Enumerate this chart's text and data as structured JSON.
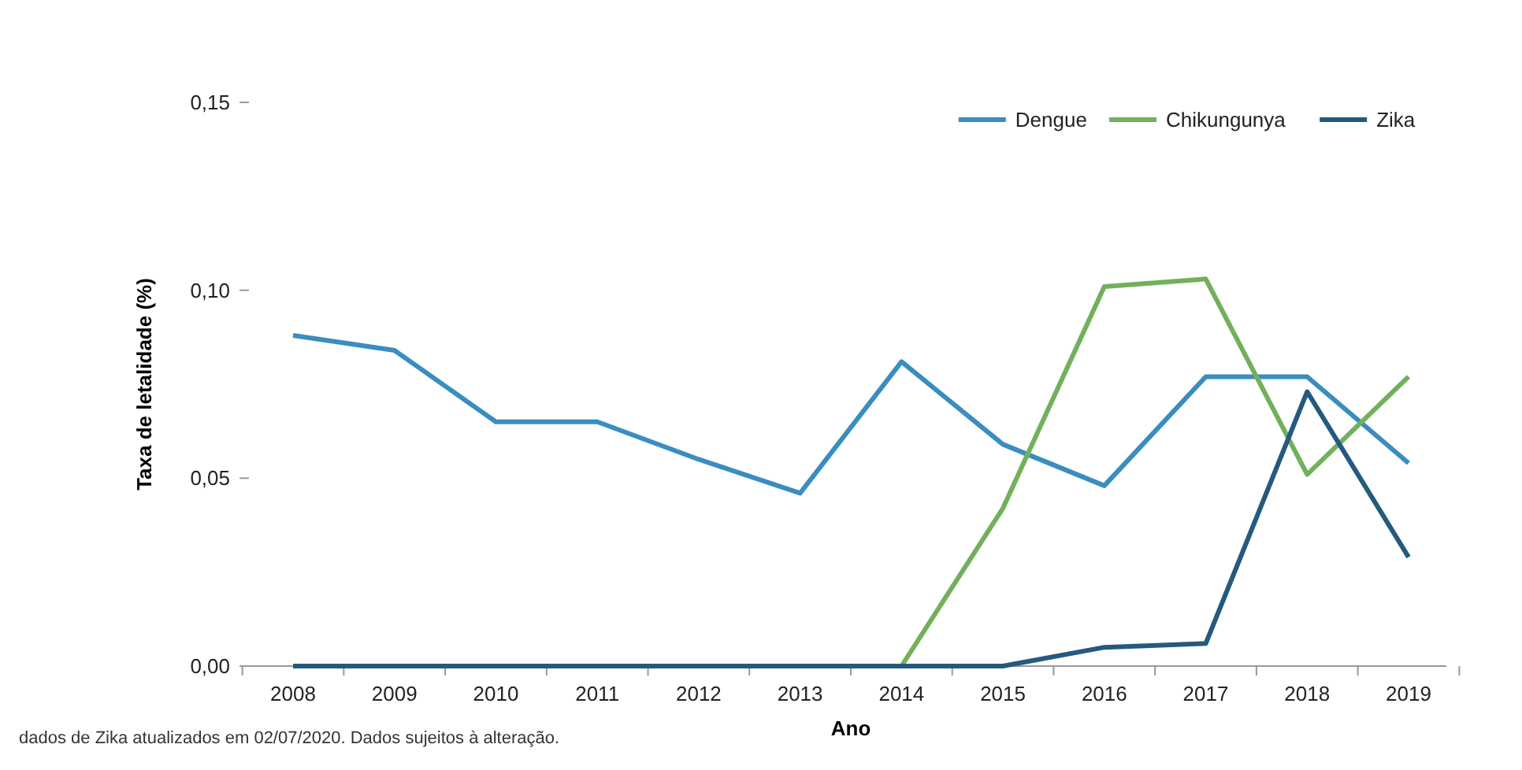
{
  "chart_data": {
    "type": "line",
    "xlabel": "Ano",
    "ylabel": "Taxa de letalidade (%)",
    "categories": [
      "2008",
      "2009",
      "2010",
      "2011",
      "2012",
      "2013",
      "2014",
      "2015",
      "2016",
      "2017",
      "2018",
      "2019"
    ],
    "series": [
      {
        "name": "Dengue",
        "color": "#3a8dbf",
        "values": [
          0.088,
          0.084,
          0.065,
          0.065,
          0.055,
          0.046,
          0.081,
          0.059,
          0.048,
          0.077,
          0.077,
          0.054
        ]
      },
      {
        "name": "Chikungunya",
        "color": "#72b05c",
        "values": [
          null,
          null,
          null,
          null,
          null,
          null,
          0,
          0.042,
          0.101,
          0.103,
          0.051,
          0.077
        ]
      },
      {
        "name": "Zika",
        "color": "#245a7e",
        "values": [
          0,
          0,
          0,
          0,
          0,
          0,
          0,
          0,
          0.005,
          0.006,
          0.073,
          0.029
        ]
      }
    ],
    "ylim": [
      0,
      0.15
    ],
    "yticks": [
      {
        "value": 0,
        "label": "0,00"
      },
      {
        "value": 0.05,
        "label": "0,05"
      },
      {
        "value": 0.1,
        "label": "0,10"
      },
      {
        "value": 0.15,
        "label": "0,15"
      }
    ],
    "legend": "top right",
    "marker": "none",
    "line_style": "solid",
    "grid": false,
    "annotations": [
      "dados de Zika atualizados em 02/07/2020. Dados sujeitos à alteração."
    ]
  }
}
